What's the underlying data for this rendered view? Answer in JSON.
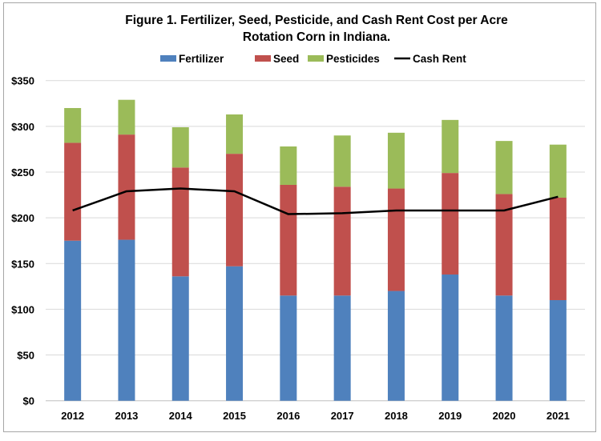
{
  "chart_data": {
    "type": "bar",
    "stacked": true,
    "title": [
      "Figure 1. Fertilizer, Seed, Pesticide, and Cash Rent Cost per Acre",
      "Rotation Corn in Indiana."
    ],
    "xlabel": "",
    "ylabel": "",
    "ylim": [
      0,
      350
    ],
    "yticks": [
      0,
      50,
      100,
      150,
      200,
      250,
      300,
      350
    ],
    "ytick_labels": [
      "$0",
      "$50",
      "$100",
      "$150",
      "$200",
      "$250",
      "$300",
      "$350"
    ],
    "grid": true,
    "legend_position": "top",
    "categories": [
      "2012",
      "2013",
      "2014",
      "2015",
      "2016",
      "2017",
      "2018",
      "2019",
      "2020",
      "2021"
    ],
    "series": [
      {
        "name": "Fertilizer",
        "type": "bar",
        "color": "#4f81bd",
        "values": [
          175,
          176,
          136,
          147,
          115,
          115,
          120,
          138,
          115,
          110
        ]
      },
      {
        "name": "Seed",
        "type": "bar",
        "color": "#c0504d",
        "values": [
          107,
          115,
          119,
          123,
          121,
          119,
          112,
          111,
          111,
          112
        ]
      },
      {
        "name": "Pesticides",
        "type": "bar",
        "color": "#9bbb59",
        "values": [
          38,
          38,
          44,
          43,
          42,
          56,
          61,
          58,
          58,
          58
        ]
      },
      {
        "name": "Cash Rent",
        "type": "line",
        "color": "#000000",
        "values": [
          208,
          229,
          232,
          229,
          204,
          205,
          208,
          208,
          208,
          223
        ]
      }
    ]
  }
}
